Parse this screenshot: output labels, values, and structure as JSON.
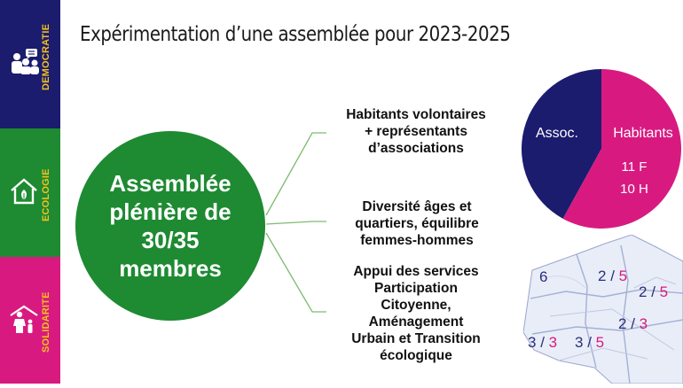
{
  "slide": {
    "title": "Expérimentation d’une assemblée pour 2023-2025"
  },
  "sidebar": {
    "sections": [
      {
        "label": "DEMOCRATIE",
        "icon": "people-meeting-icon",
        "color": "#1b1c6e"
      },
      {
        "label": "ECOLOGIE",
        "icon": "eco-house-icon",
        "color": "#1e8a32"
      },
      {
        "label": "SOLIDARITE",
        "icon": "family-shelter-icon",
        "color": "#d81a80"
      }
    ],
    "label_color": "#f2c21b"
  },
  "center": {
    "circle_text": "Assemblée plénière de 30/35 membres",
    "circle_color": "#1e8a32"
  },
  "bullets": [
    {
      "text": "Habitants volontaires\n+ représentants\nd’associations"
    },
    {
      "text": "Diversité âges et\nquartiers, équilibre\nfemmes-hommes"
    },
    {
      "text": "Appui des services\nParticipation\nCitoyenne,\nAménagement\nUrbain et Transition\nécologique"
    }
  ],
  "pie": {
    "slices": [
      {
        "label": "Assoc.",
        "share": 0.42,
        "color": "#1b1c6e"
      },
      {
        "label": "Habitants",
        "share": 0.58,
        "color": "#d81a80"
      }
    ],
    "habitants_f": "11 F",
    "habitants_h": "10 H"
  },
  "map": {
    "districts": [
      {
        "left": "6",
        "sep": "",
        "right": ""
      },
      {
        "left": "2",
        "sep": " / ",
        "right": "5"
      },
      {
        "left": "2",
        "sep": " / ",
        "right": "5"
      },
      {
        "left": "2",
        "sep": " / ",
        "right": "3"
      },
      {
        "left": "3",
        "sep": " / ",
        "right": "3"
      },
      {
        "left": "3",
        "sep": " / ",
        "right": "5"
      }
    ]
  }
}
